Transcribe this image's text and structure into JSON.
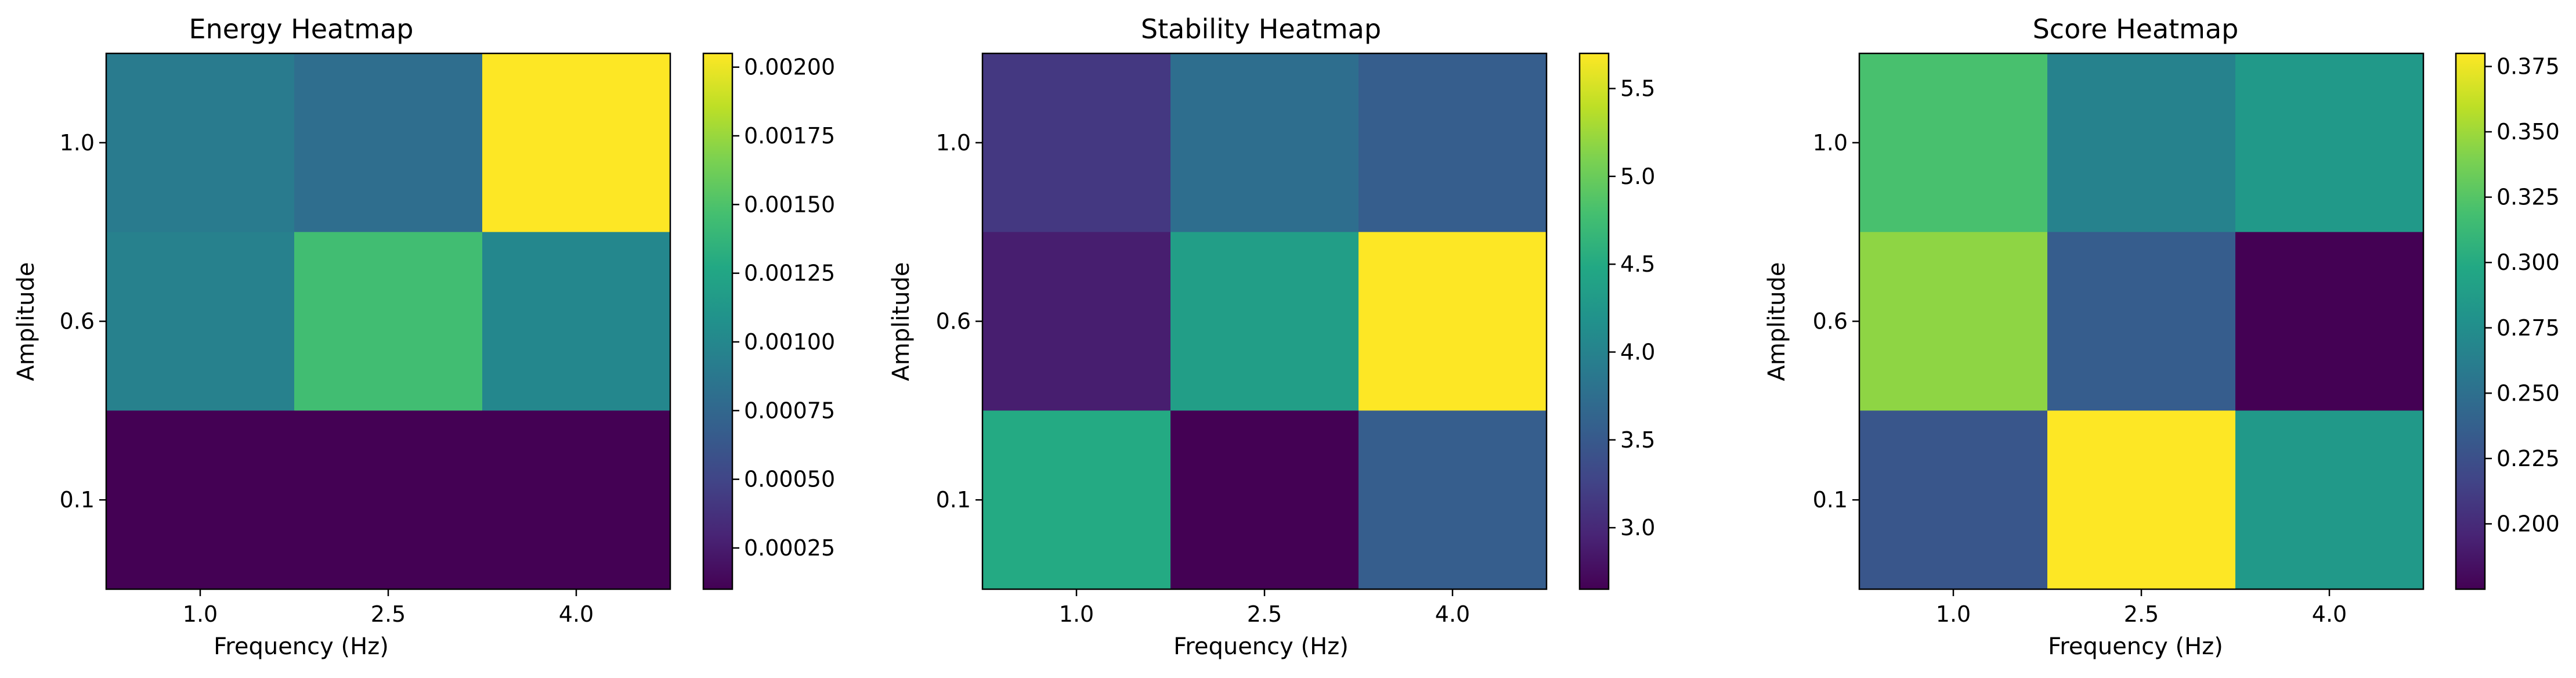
{
  "chart_data": [
    {
      "type": "heatmap",
      "title": "Energy Heatmap",
      "xlabel": "Frequency (Hz)",
      "ylabel": "Amplitude",
      "x": [
        "1.0",
        "2.5",
        "4.0"
      ],
      "y": [
        "1.0",
        "0.6",
        "0.1"
      ],
      "values": [
        [
          0.0009,
          0.0008,
          0.00205
        ],
        [
          0.00095,
          0.00145,
          0.001
        ],
        [
          0.0001,
          0.0001,
          0.0001
        ]
      ],
      "colorbar": {
        "range": [
          0.0001,
          0.00205
        ],
        "ticks": [
          0.00025,
          0.0005,
          0.00075,
          0.001,
          0.00125,
          0.0015,
          0.00175,
          0.002
        ],
        "tick_labels": [
          "0.00025",
          "0.00050",
          "0.00075",
          "0.00100",
          "0.00125",
          "0.00150",
          "0.00175",
          "0.00200"
        ]
      },
      "colormap": "viridis"
    },
    {
      "type": "heatmap",
      "title": "Stability Heatmap",
      "xlabel": "Frequency (Hz)",
      "ylabel": "Amplitude",
      "x": [
        "1.0",
        "2.5",
        "4.0"
      ],
      "y": [
        "1.0",
        "0.6",
        "0.1"
      ],
      "values": [
        [
          3.15,
          3.75,
          3.55
        ],
        [
          2.9,
          4.35,
          5.7
        ],
        [
          4.5,
          2.65,
          3.55
        ]
      ],
      "colorbar": {
        "range": [
          2.65,
          5.7
        ],
        "ticks": [
          3.0,
          3.5,
          4.0,
          4.5,
          5.0,
          5.5
        ],
        "tick_labels": [
          "3.0",
          "3.5",
          "4.0",
          "4.5",
          "5.0",
          "5.5"
        ]
      },
      "colormap": "viridis"
    },
    {
      "type": "heatmap",
      "title": "Score Heatmap",
      "xlabel": "Frequency (Hz)",
      "ylabel": "Amplitude",
      "x": [
        "1.0",
        "2.5",
        "4.0"
      ],
      "y": [
        "1.0",
        "0.6",
        "0.1"
      ],
      "values": [
        [
          0.32,
          0.265,
          0.285
        ],
        [
          0.345,
          0.235,
          0.175
        ],
        [
          0.23,
          0.38,
          0.285
        ]
      ],
      "colorbar": {
        "range": [
          0.175,
          0.38
        ],
        "ticks": [
          0.2,
          0.225,
          0.25,
          0.275,
          0.3,
          0.325,
          0.35,
          0.375
        ],
        "tick_labels": [
          "0.200",
          "0.225",
          "0.250",
          "0.275",
          "0.300",
          "0.325",
          "0.350",
          "0.375"
        ]
      },
      "colormap": "viridis"
    }
  ]
}
